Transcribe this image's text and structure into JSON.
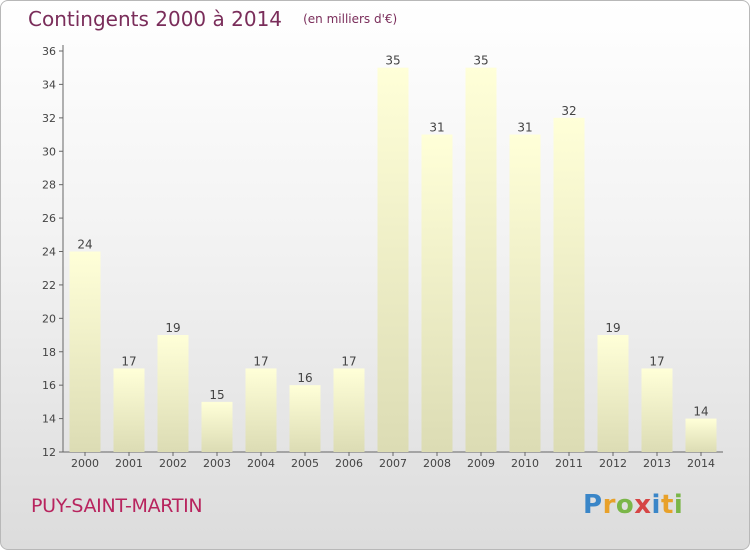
{
  "chart_data": {
    "type": "bar",
    "title": "Contingents 2000 à 2014",
    "subtitle": "(en milliers d'€)",
    "categories": [
      "2000",
      "2001",
      "2002",
      "2003",
      "2004",
      "2005",
      "2006",
      "2007",
      "2008",
      "2009",
      "2010",
      "2011",
      "2012",
      "2013",
      "2014"
    ],
    "values": [
      24,
      17,
      19,
      15,
      17,
      16,
      17,
      35,
      31,
      35,
      31,
      32,
      19,
      17,
      14
    ],
    "ylim": [
      12,
      36
    ],
    "yticks": [
      12,
      14,
      16,
      18,
      20,
      22,
      24,
      26,
      28,
      30,
      32,
      34,
      36
    ],
    "grid": false,
    "bar_color_top": "#ffffd8",
    "bar_color_bottom": "#dcdcb4"
  },
  "footer": {
    "commune": "PUY-SAINT-MARTIN",
    "logo": "Proxiti"
  },
  "colors": {
    "title": "#7a2d5a",
    "commune": "#b8245e"
  }
}
